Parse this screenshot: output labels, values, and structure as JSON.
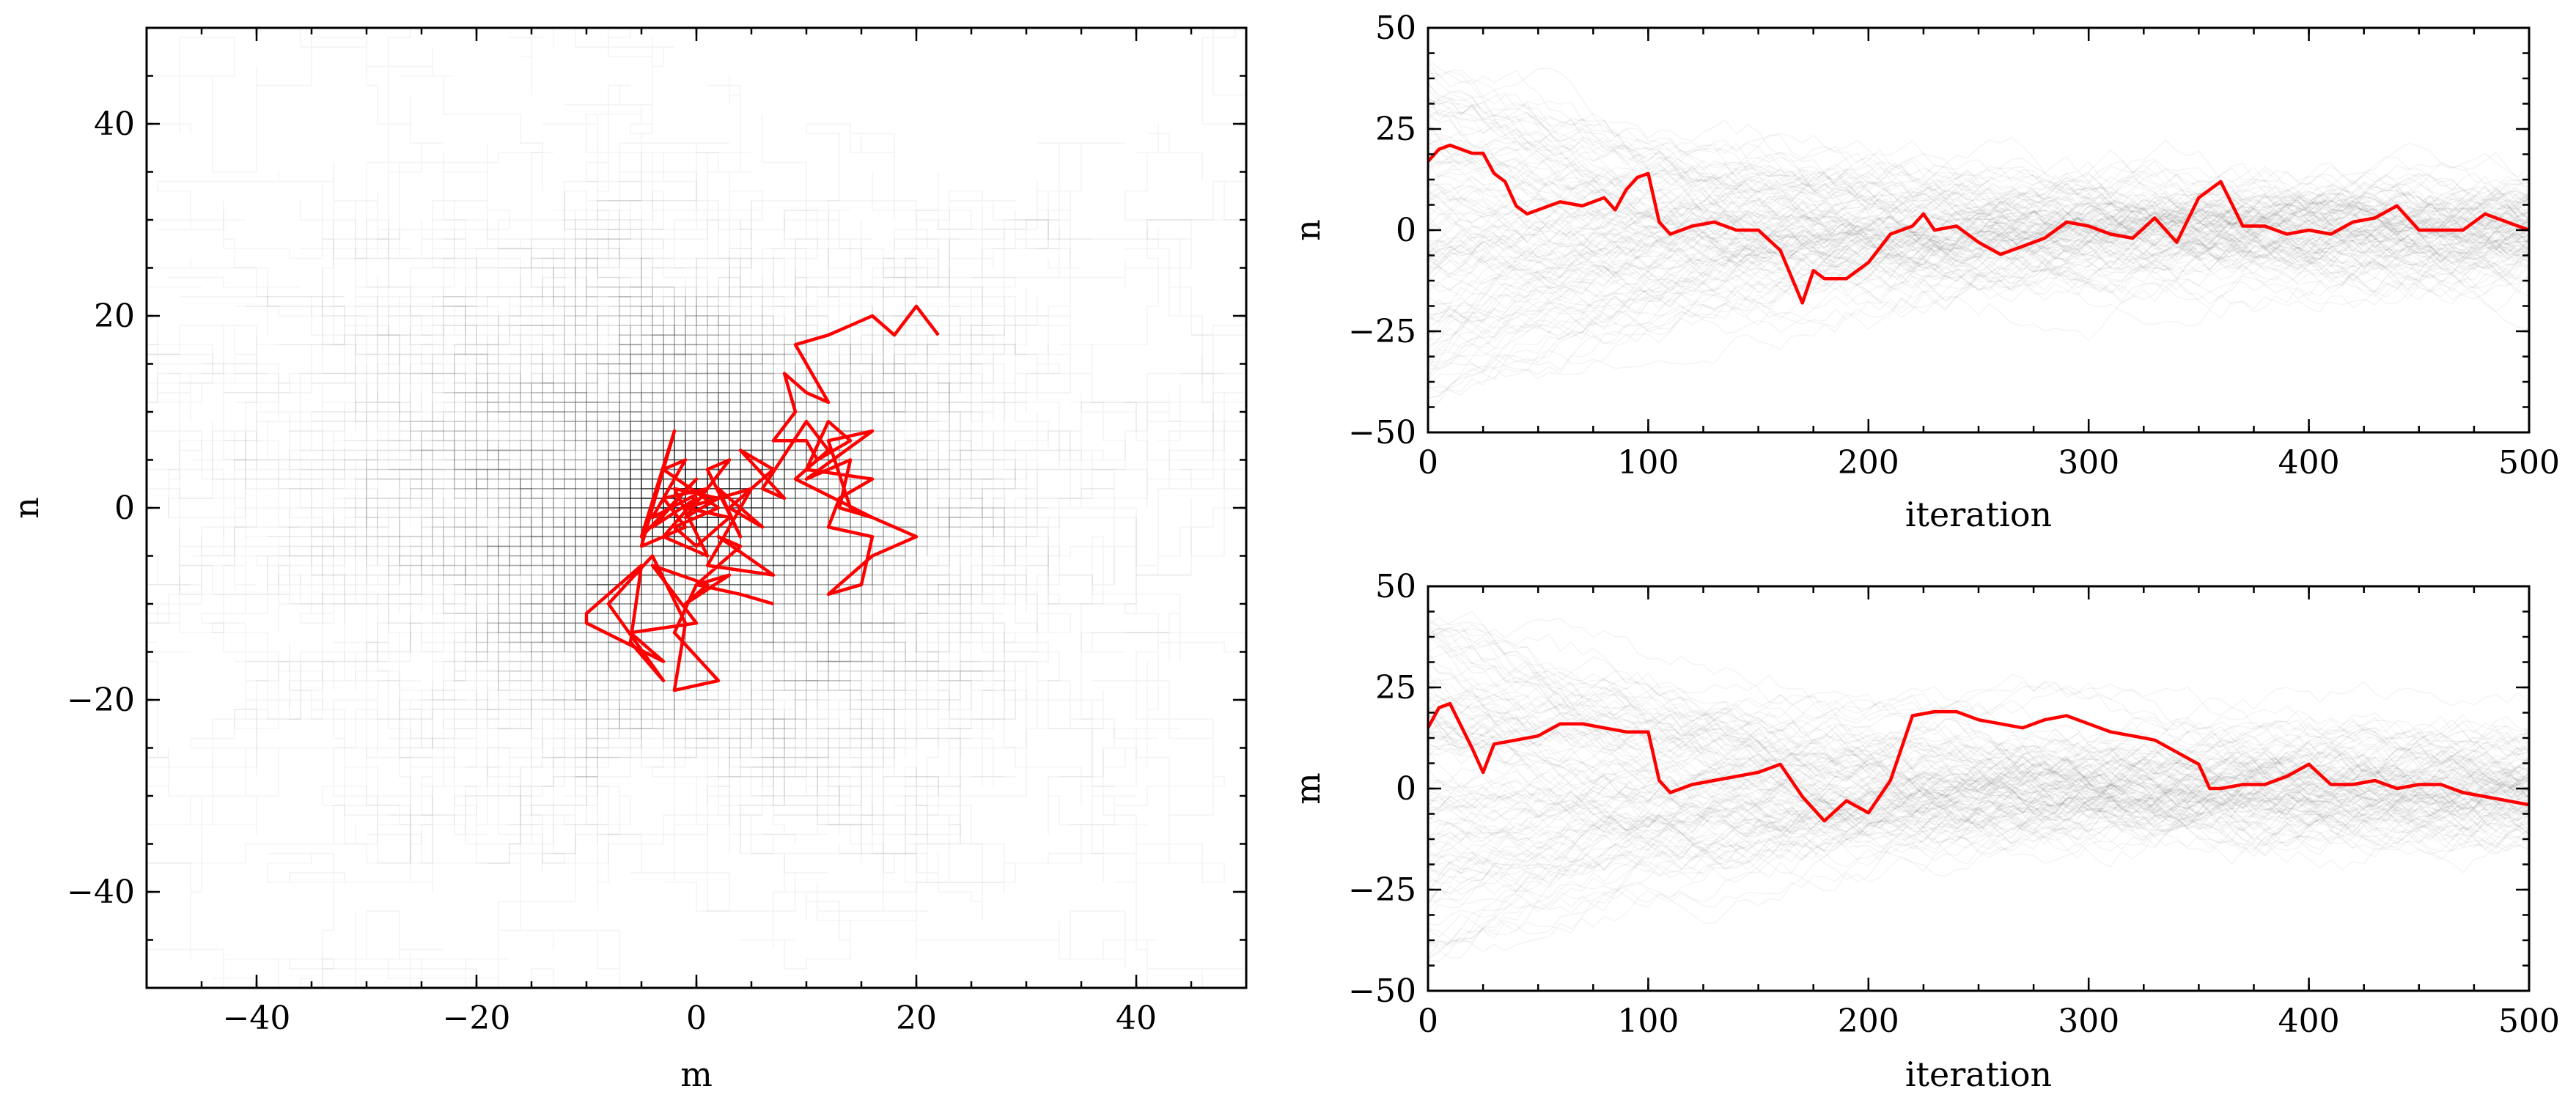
{
  "figure": "random walk in (m, n) with trace plots",
  "colors": {
    "highlight": "#ff0000",
    "ensemble": "#000000",
    "background": "#ffffff"
  },
  "chart_data": [
    {
      "id": "scatter",
      "type": "line",
      "xlabel": "m",
      "ylabel": "n",
      "xlim": [
        -50,
        50
      ],
      "ylim": [
        -50,
        50
      ],
      "xticks": [
        -40,
        -20,
        0,
        20,
        40
      ],
      "yticks": [
        -40,
        -20,
        0,
        20,
        40
      ],
      "xtick_labels": [
        "−40",
        "−20",
        "0",
        "20",
        "40"
      ],
      "ytick_labels": [
        "−40",
        "−20",
        "0",
        "20",
        "40"
      ],
      "grid": false,
      "ensemble_walks": 180,
      "highlight_path": {
        "m": [
          22,
          20,
          18,
          16,
          12,
          9,
          12,
          10,
          8,
          9,
          7,
          10,
          11,
          14,
          12,
          10,
          16,
          13,
          12,
          16,
          15,
          12,
          16,
          20,
          14,
          12,
          16,
          10,
          14,
          13,
          16,
          9,
          12,
          10,
          6,
          8,
          4,
          7,
          3,
          6,
          2,
          4,
          1,
          3,
          -1,
          2,
          -2,
          1,
          -3,
          0,
          -4,
          0,
          -5,
          -2,
          -5,
          -1,
          -3,
          1,
          -4,
          -1,
          -3,
          2,
          -2,
          0,
          3,
          -1,
          5,
          1,
          7,
          2,
          4,
          0,
          3,
          -1,
          1,
          -4,
          0,
          -6,
          -3,
          -10,
          -10,
          -5,
          -6,
          -3,
          -8,
          -4,
          -1,
          -2,
          2,
          -2,
          0,
          4,
          7
        ],
        "n": [
          18,
          21,
          18,
          20,
          18,
          17,
          11,
          12,
          14,
          10,
          7,
          7,
          5,
          7,
          9,
          4,
          3,
          1,
          -2,
          -3,
          -8,
          -9,
          -5,
          -3,
          0,
          7,
          8,
          3,
          5,
          0,
          -1,
          3,
          6,
          9,
          2,
          1,
          6,
          4,
          0,
          -2,
          2,
          -3,
          4,
          5,
          -1,
          1,
          2,
          -5,
          -3,
          1,
          -2,
          3,
          -3,
          8,
          -4,
          -2,
          1,
          2,
          -1,
          5,
          4,
          0,
          -2,
          -4,
          -1,
          0,
          2,
          -6,
          -7,
          -3,
          -4,
          -8,
          -7,
          -10,
          -8,
          -6,
          -12,
          -13,
          -16,
          -12,
          -11,
          -6,
          -14,
          -18,
          -10,
          -5,
          -12,
          -19,
          -18,
          -13,
          -8,
          -9,
          -10
        ]
      }
    },
    {
      "id": "trace-n",
      "type": "line",
      "xlabel": "iteration",
      "ylabel": "n",
      "xlim": [
        0,
        500
      ],
      "ylim": [
        -50,
        50
      ],
      "xticks": [
        0,
        100,
        200,
        300,
        400,
        500
      ],
      "yticks": [
        -50,
        -25,
        0,
        25,
        50
      ],
      "xtick_labels": [
        "0",
        "100",
        "200",
        "300",
        "400",
        "500"
      ],
      "ytick_labels": [
        "−50",
        "−25",
        "0",
        "25",
        "50"
      ],
      "grid": false,
      "highlight_series": {
        "x": [
          0,
          5,
          10,
          20,
          25,
          30,
          35,
          40,
          45,
          50,
          60,
          70,
          80,
          85,
          90,
          95,
          100,
          105,
          110,
          120,
          130,
          140,
          150,
          160,
          170,
          175,
          180,
          190,
          200,
          210,
          220,
          225,
          230,
          240,
          250,
          260,
          270,
          280,
          290,
          300,
          310,
          320,
          330,
          340,
          350,
          360,
          370,
          380,
          390,
          400,
          410,
          420,
          430,
          440,
          450,
          460,
          470,
          480,
          490,
          500
        ],
        "y": [
          17,
          20,
          21,
          19,
          19,
          14,
          12,
          6,
          4,
          5,
          7,
          6,
          8,
          5,
          10,
          13,
          14,
          2,
          -1,
          1,
          2,
          0,
          0,
          -5,
          -18,
          -10,
          -12,
          -12,
          -8,
          -1,
          1,
          4,
          0,
          1,
          -3,
          -6,
          -4,
          -2,
          2,
          1,
          -1,
          -2,
          3,
          -3,
          8,
          12,
          1,
          1,
          -1,
          0,
          -1,
          2,
          3,
          6,
          0,
          0,
          0,
          4,
          2,
          0
        ]
      }
    },
    {
      "id": "trace-m",
      "type": "line",
      "xlabel": "iteration",
      "ylabel": "m",
      "xlim": [
        0,
        500
      ],
      "ylim": [
        -50,
        50
      ],
      "xticks": [
        0,
        100,
        200,
        300,
        400,
        500
      ],
      "yticks": [
        -50,
        -25,
        0,
        25,
        50
      ],
      "xtick_labels": [
        "0",
        "100",
        "200",
        "300",
        "400",
        "500"
      ],
      "ytick_labels": [
        "−50",
        "−25",
        "0",
        "25",
        "50"
      ],
      "grid": false,
      "highlight_series": {
        "x": [
          0,
          5,
          10,
          20,
          25,
          30,
          40,
          50,
          60,
          70,
          80,
          90,
          100,
          105,
          110,
          120,
          130,
          140,
          150,
          160,
          165,
          170,
          180,
          190,
          200,
          210,
          215,
          220,
          230,
          240,
          250,
          260,
          270,
          280,
          290,
          300,
          310,
          320,
          330,
          340,
          350,
          355,
          360,
          370,
          380,
          390,
          400,
          410,
          420,
          430,
          440,
          450,
          460,
          470,
          480,
          490,
          500
        ],
        "y": [
          15,
          20,
          21,
          10,
          4,
          11,
          12,
          13,
          16,
          16,
          15,
          14,
          14,
          2,
          -1,
          1,
          2,
          3,
          4,
          6,
          2,
          -2,
          -8,
          -3,
          -6,
          2,
          10,
          18,
          19,
          19,
          17,
          16,
          15,
          17,
          18,
          16,
          14,
          13,
          12,
          9,
          6,
          0,
          0,
          1,
          1,
          3,
          6,
          1,
          1,
          2,
          0,
          1,
          1,
          -1,
          -2,
          -3,
          -4
        ]
      }
    }
  ]
}
